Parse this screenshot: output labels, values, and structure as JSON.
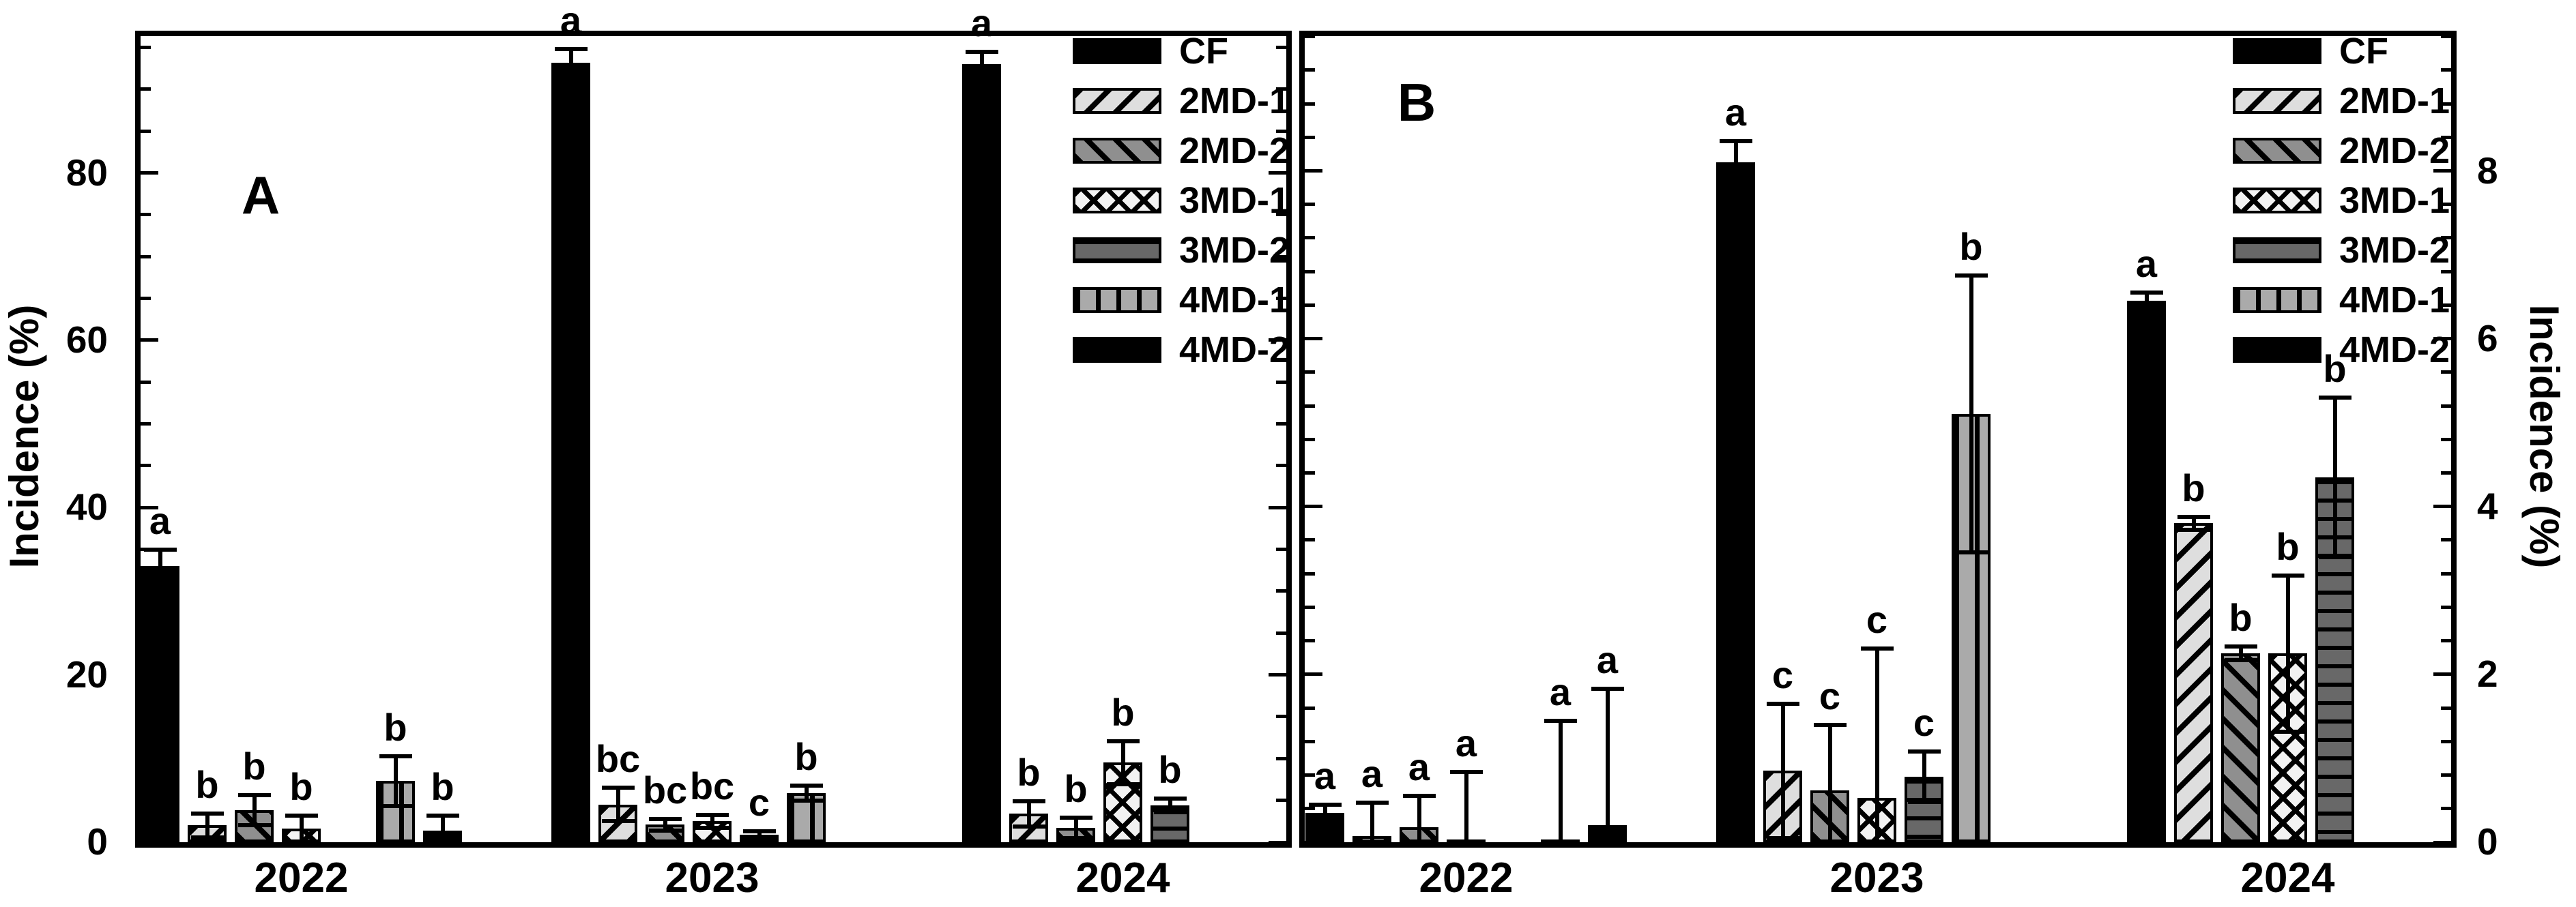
{
  "figure_title": "",
  "colors": {
    "ink": "#000000",
    "background": "#ffffff",
    "gray_light": "#dedede",
    "gray_mid": "#8f8f8f",
    "gray_dark": "#686868",
    "gray_stripe": "#aaaaaa"
  },
  "legend": {
    "entries": [
      {
        "label": "CF",
        "pattern": "solid-black"
      },
      {
        "label": "2MD-1",
        "pattern": "diag-up-light"
      },
      {
        "label": "2MD-2",
        "pattern": "diag-down-gray"
      },
      {
        "label": "3MD-1",
        "pattern": "crosshatch"
      },
      {
        "label": "3MD-2",
        "pattern": "horizontal-dark"
      },
      {
        "label": "4MD-1",
        "pattern": "vertical-gray"
      },
      {
        "label": "4MD-2",
        "pattern": "solid-black"
      }
    ]
  },
  "chart_data": [
    {
      "type": "bar",
      "panel_label": "A",
      "ylabel": "Incidence (%)",
      "ylabel_side": "left",
      "ylim": [
        0,
        97
      ],
      "yticks_major": [
        0,
        20,
        40,
        60,
        80
      ],
      "ytick_minor_step": 5,
      "grid": false,
      "legend_position": "top-right",
      "categories": [
        "2022",
        "2023",
        "2024"
      ],
      "series": [
        {
          "name": "CF",
          "pattern": "solid-black",
          "values": [
            33.0,
            93.2,
            93.0
          ],
          "errors": [
            2.0,
            1.6,
            1.5
          ],
          "letters": [
            "a",
            "a",
            "a"
          ]
        },
        {
          "name": "2MD-1",
          "pattern": "diag-up-light",
          "values": [
            2.0,
            4.5,
            3.4
          ],
          "errors": [
            1.4,
            2.0,
            1.5
          ],
          "letters": [
            "b",
            "bc",
            "b"
          ]
        },
        {
          "name": "2MD-2",
          "pattern": "diag-down-gray",
          "values": [
            3.8,
            2.1,
            1.7
          ],
          "errors": [
            1.8,
            0.7,
            1.2
          ],
          "letters": [
            "b",
            "bc",
            "b"
          ]
        },
        {
          "name": "3MD-1",
          "pattern": "crosshatch",
          "values": [
            1.6,
            2.5,
            9.5
          ],
          "errors": [
            1.6,
            0.8,
            2.6
          ],
          "letters": [
            "b",
            "bc",
            "b"
          ]
        },
        {
          "name": "3MD-2",
          "pattern": "horizontal-dark",
          "values": [
            0,
            0.9,
            4.4
          ],
          "errors": [
            0,
            0.4,
            0.8
          ],
          "letters": [
            "",
            "c",
            "b"
          ]
        },
        {
          "name": "4MD-1",
          "pattern": "vertical-gray",
          "values": [
            7.3,
            5.9,
            0
          ],
          "errors": [
            3.0,
            0.9,
            0
          ],
          "letters": [
            "b",
            "b",
            ""
          ]
        },
        {
          "name": "4MD-2",
          "pattern": "solid-black",
          "values": [
            1.4,
            0,
            0
          ],
          "errors": [
            1.8,
            0,
            0
          ],
          "letters": [
            "b",
            "",
            ""
          ]
        }
      ]
    },
    {
      "type": "bar",
      "panel_label": "B",
      "ylabel": "Incidence (%)",
      "ylabel_side": "right",
      "ylim": [
        0,
        9.67
      ],
      "yticks_major": [
        0,
        2,
        4,
        6,
        8
      ],
      "ytick_minor_step": 0.4,
      "grid": false,
      "legend_position": "top-right",
      "categories": [
        "2022",
        "2023",
        "2024"
      ],
      "series": [
        {
          "name": "CF",
          "pattern": "solid-black",
          "values": [
            0.35,
            8.1,
            6.45
          ],
          "errors": [
            0.1,
            0.25,
            0.1
          ],
          "letters": [
            "a",
            "a",
            "a"
          ]
        },
        {
          "name": "2MD-1",
          "pattern": "diag-up-light",
          "values": [
            0.07,
            0.85,
            3.8
          ],
          "errors": [
            0.4,
            0.8,
            0.08
          ],
          "letters": [
            "a",
            "c",
            "b"
          ]
        },
        {
          "name": "2MD-2",
          "pattern": "diag-down-gray",
          "values": [
            0.18,
            0.62,
            2.25
          ],
          "errors": [
            0.37,
            0.78,
            0.08
          ],
          "letters": [
            "a",
            "c",
            "b"
          ]
        },
        {
          "name": "3MD-1",
          "pattern": "crosshatch",
          "values": [
            0.02,
            0.53,
            2.25
          ],
          "errors": [
            0.82,
            1.78,
            0.93
          ],
          "letters": [
            "a",
            "c",
            "b"
          ]
        },
        {
          "name": "3MD-2",
          "pattern": "horizontal-dark",
          "values": [
            0,
            0.78,
            4.35
          ],
          "errors": [
            0,
            0.3,
            0.95
          ],
          "letters": [
            "",
            "c",
            "b"
          ]
        },
        {
          "name": "4MD-1",
          "pattern": "vertical-gray",
          "values": [
            0.02,
            5.1,
            0
          ],
          "errors": [
            1.43,
            1.65,
            0
          ],
          "letters": [
            "a",
            "b",
            ""
          ]
        },
        {
          "name": "4MD-2",
          "pattern": "solid-black",
          "values": [
            0.2,
            0,
            0
          ],
          "errors": [
            1.63,
            0,
            0
          ],
          "letters": [
            "a",
            "",
            ""
          ]
        }
      ]
    }
  ]
}
